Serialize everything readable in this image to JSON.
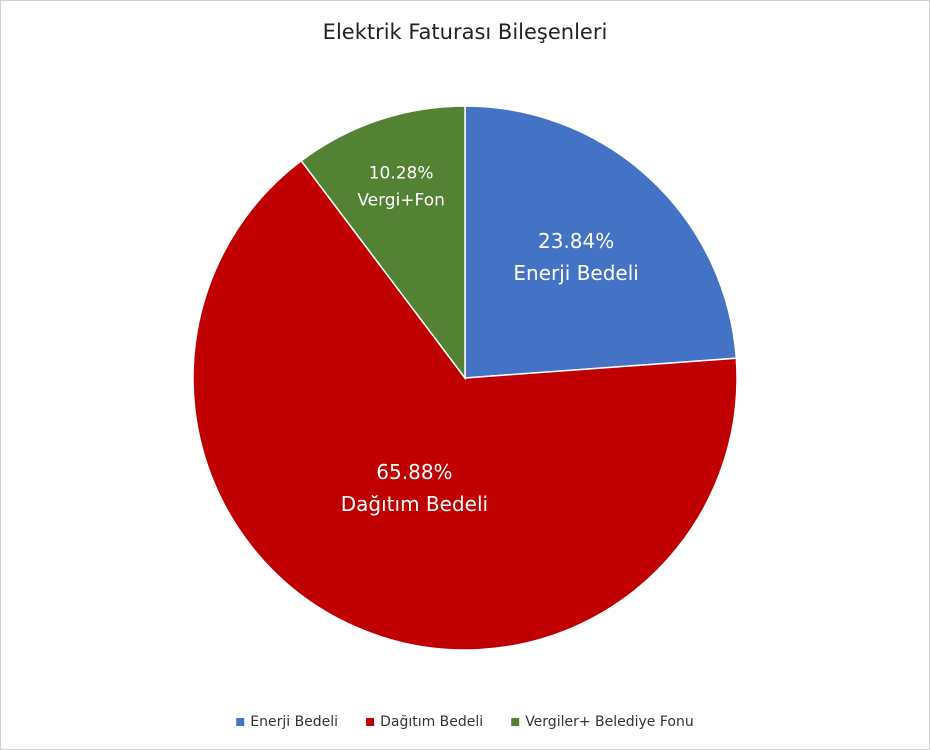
{
  "chart_data": {
    "type": "pie",
    "title": "Elektrik Faturası Bileşenleri",
    "categories": [
      "Enerji Bedeli",
      "Dağıtım Bedeli",
      "Vergiler+ Belediye Fonu"
    ],
    "values": [
      23.84,
      65.88,
      10.28
    ],
    "value_labels": [
      "23.84%",
      "65.88%",
      "10.28%"
    ],
    "slice_labels": [
      "Enerji Bedeli",
      "Dağıtım Bedeli",
      "Vergi+Fon"
    ],
    "colors": [
      "#4472c4",
      "#c00000",
      "#548235"
    ],
    "legend": "bottom"
  }
}
